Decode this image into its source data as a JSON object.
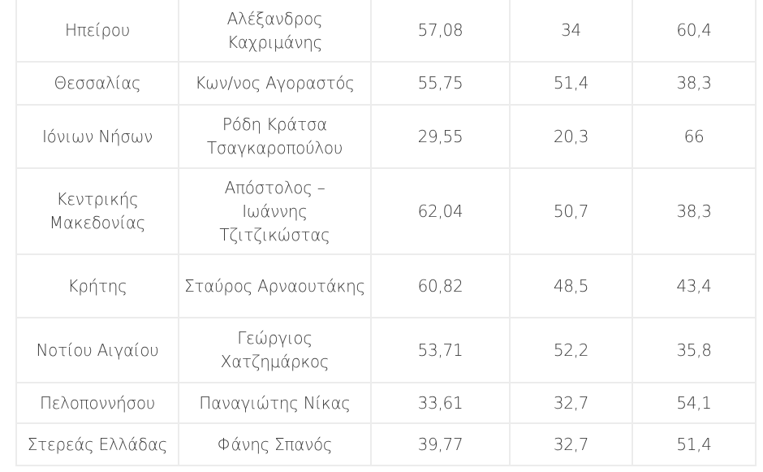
{
  "rows": [
    {
      "region": "Ηπείρου",
      "name": "Αλέξανδρος Καχριμάνης",
      "v1": "57,08",
      "v2": "34",
      "v3": "60,4"
    },
    {
      "region": "Θεσσαλίας",
      "name": "Κων/νος Αγοραστός",
      "v1": "55,75",
      "v2": "51,4",
      "v3": "38,3"
    },
    {
      "region": "Ιόνιων Νήσων",
      "name": "Ρόδη Κράτσα Τσαγκαροπούλου",
      "v1": "29,55",
      "v2": "20,3",
      "v3": "66"
    },
    {
      "region": "Κεντρικής Μακεδονίας",
      "name": "Απόστολος – Ιωάννης Τζιτζικώστας",
      "v1": "62,04",
      "v2": "50,7",
      "v3": "38,3"
    },
    {
      "region": "Κρήτης",
      "name": "Σταύρος Αρναουτάκης",
      "v1": "60,82",
      "v2": "48,5",
      "v3": "43,4"
    },
    {
      "region": "Νοτίου Αιγαίου",
      "name": "Γεώργιος Χατζημάρκος",
      "v1": "53,71",
      "v2": "52,2",
      "v3": "35,8"
    },
    {
      "region": "Πελοποννήσου",
      "name": "Παναγιώτης Νίκας",
      "v1": "33,61",
      "v2": "32,7",
      "v3": "54,1"
    },
    {
      "region": "Στερεάς Ελλάδας",
      "name": "Φάνης Σπανός",
      "v1": "39,77",
      "v2": "32,7",
      "v3": "51,4"
    }
  ]
}
